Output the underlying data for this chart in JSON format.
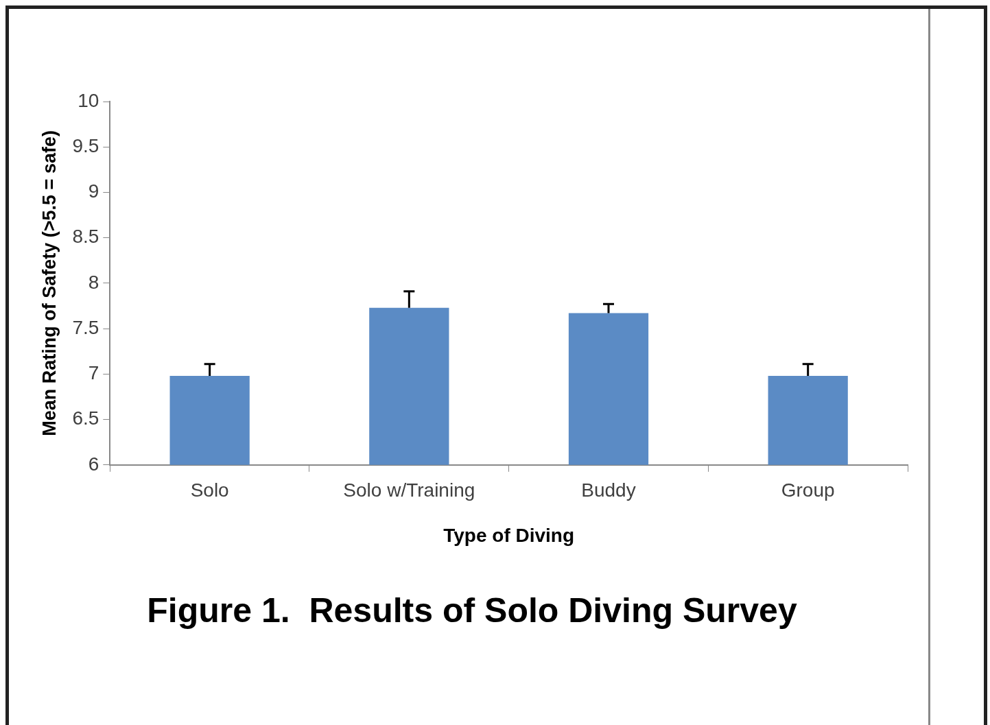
{
  "chart_data": {
    "type": "bar",
    "title": "Figure 1.  Results of Solo Diving Survey",
    "xlabel": "Type of Diving",
    "ylabel": "Mean Rating of Safety (>5.5 = safe)",
    "categories": [
      "Solo",
      "Solo w/Training",
      "Buddy",
      "Group"
    ],
    "values": [
      6.98,
      7.73,
      7.67,
      6.98
    ],
    "errors": [
      [
        6.98,
        7.11
      ],
      [
        7.73,
        7.91
      ],
      [
        7.67,
        7.77
      ],
      [
        6.98,
        7.11
      ]
    ],
    "color": "#5b8bc5",
    "ylim": [
      6,
      10
    ],
    "yticks": [
      6,
      6.5,
      7,
      7.5,
      8,
      8.5,
      9,
      9.5,
      10
    ]
  }
}
